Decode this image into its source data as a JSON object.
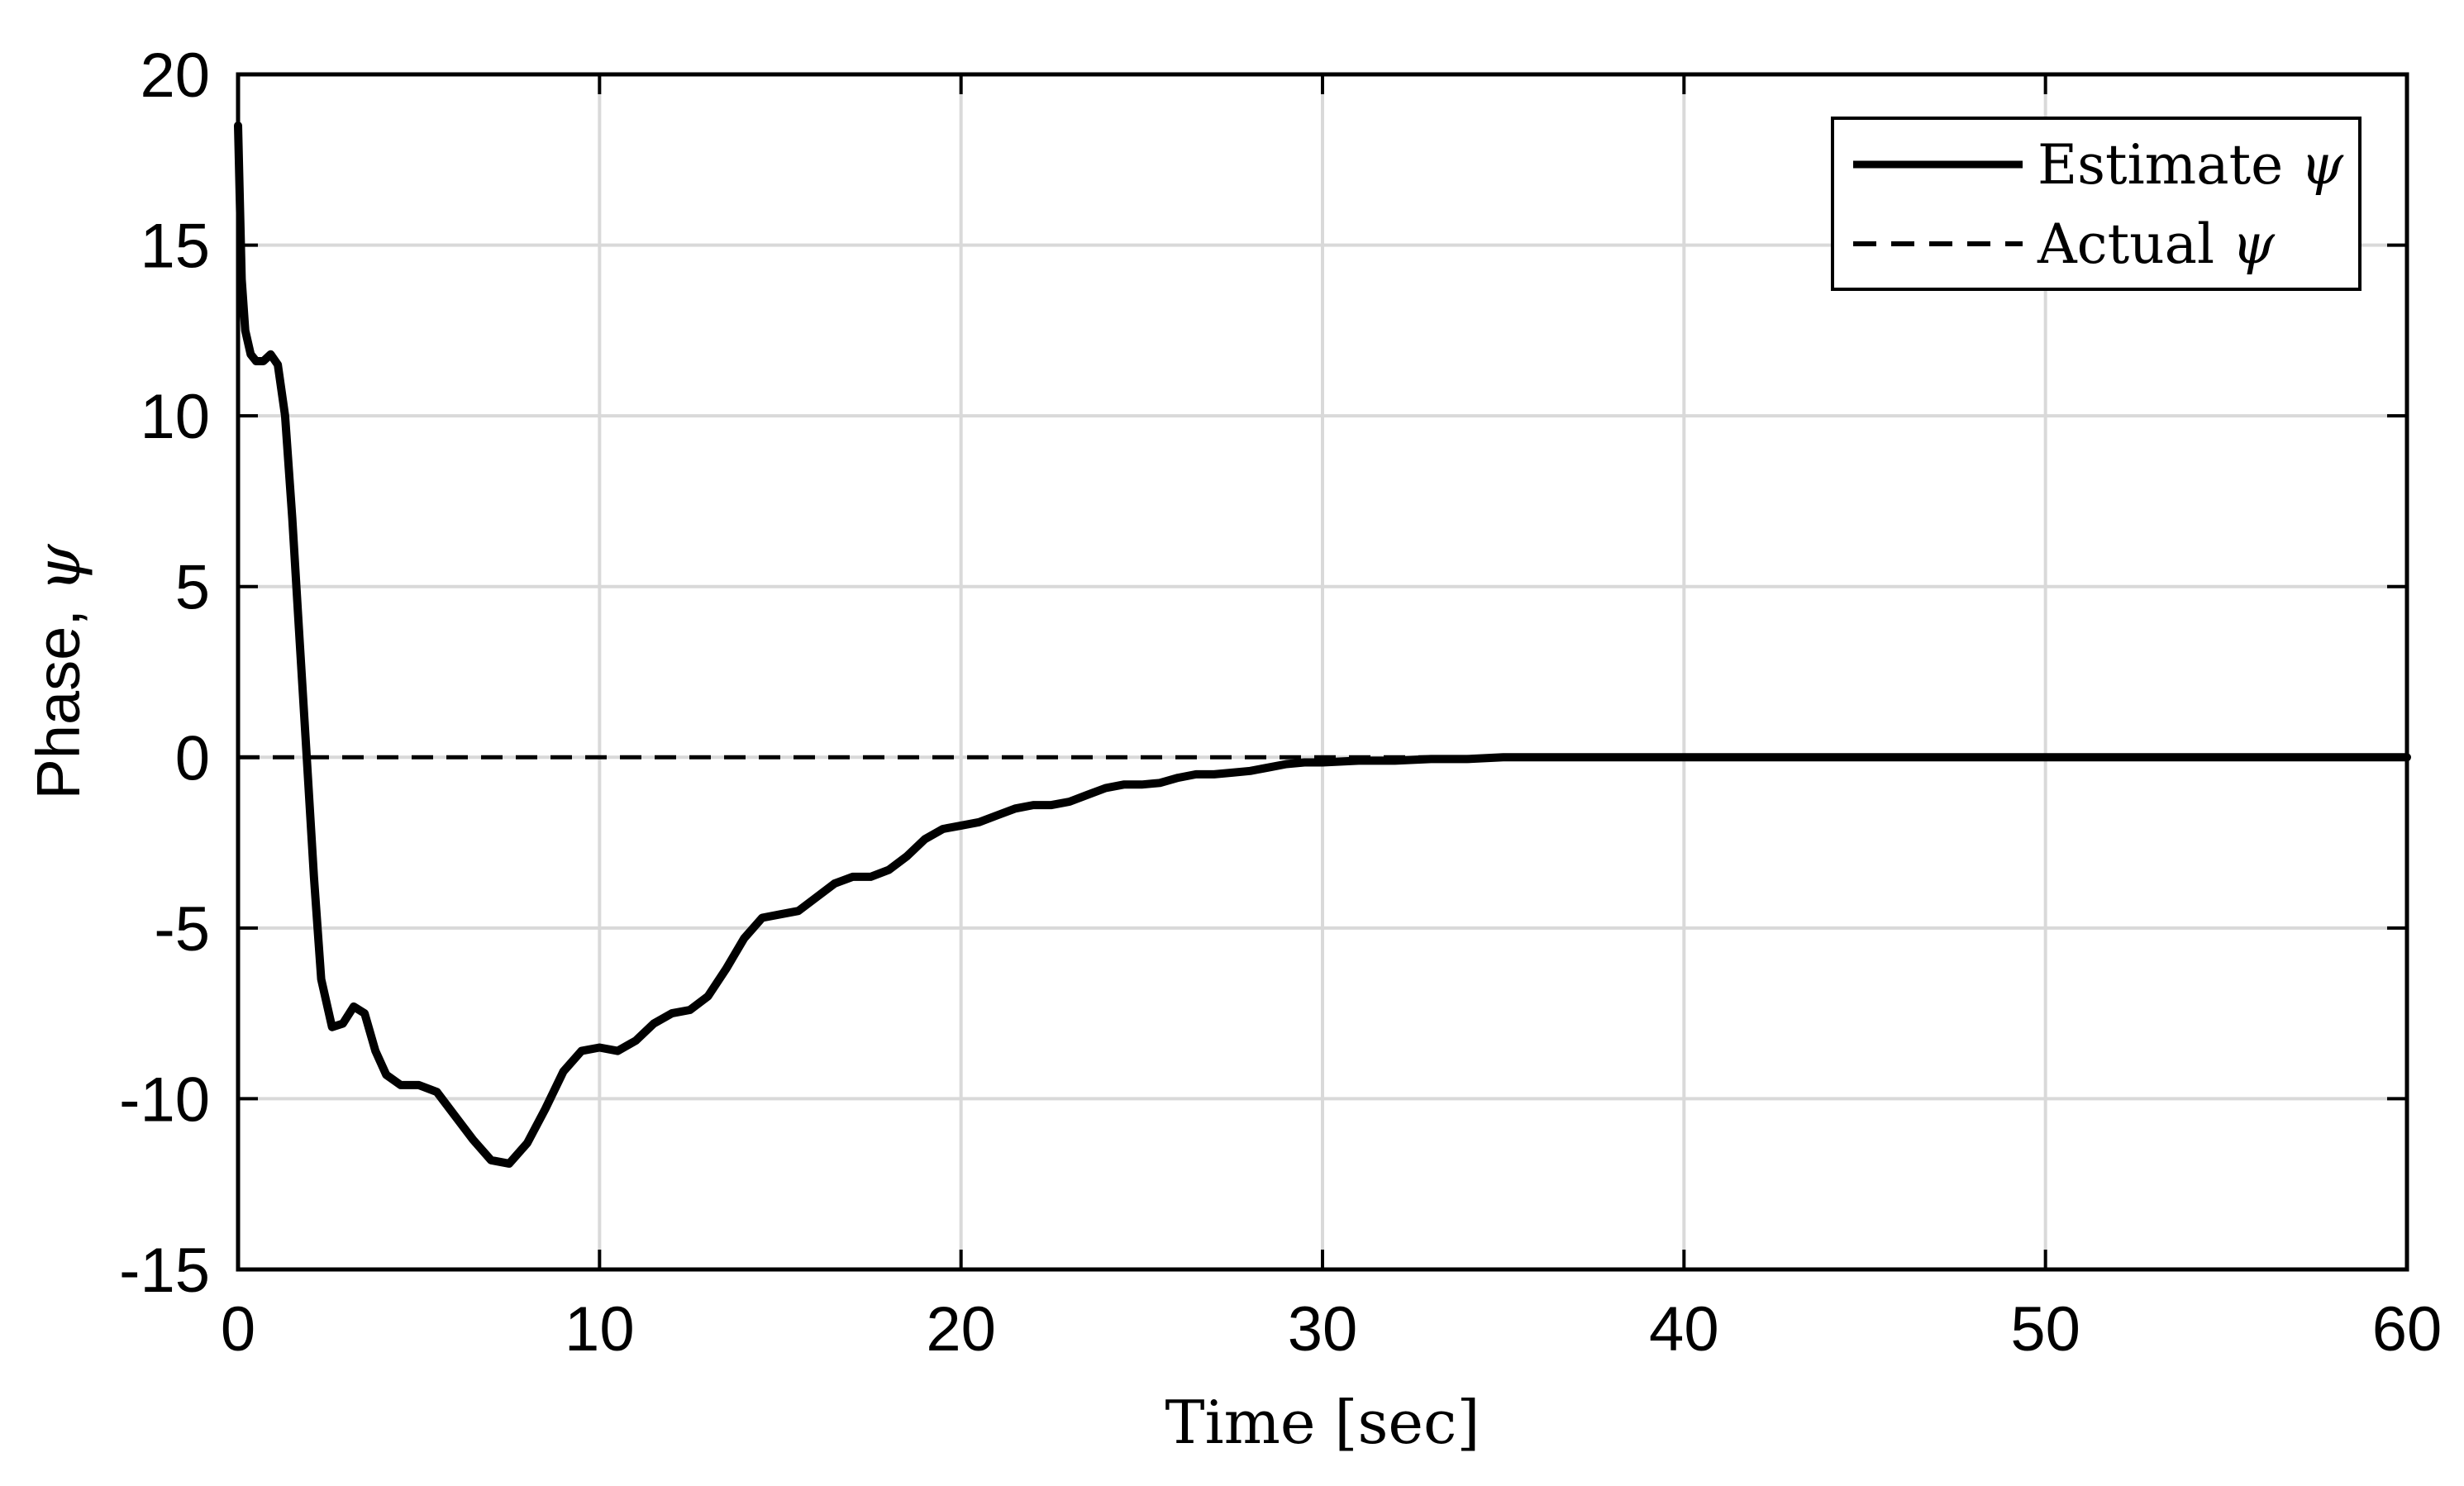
{
  "chart_data": {
    "type": "line",
    "xlabel": "Time [sec]",
    "ylabel_text": "Phase, ",
    "ylabel_symbol": "ψ",
    "xlim": [
      0,
      60
    ],
    "ylim": [
      -15,
      20
    ],
    "xticks": [
      0,
      10,
      20,
      30,
      40,
      50,
      60
    ],
    "yticks": [
      -15,
      -10,
      -5,
      0,
      5,
      10,
      15,
      20
    ],
    "grid": true,
    "legend_placement": "top-right",
    "series": [
      {
        "name": "Estimate ψ",
        "style": "solid",
        "color": "#000000",
        "x": [
          0,
          0.1,
          0.2,
          0.35,
          0.5,
          0.7,
          0.9,
          1.1,
          1.3,
          1.5,
          1.7,
          1.9,
          2.1,
          2.3,
          2.6,
          2.9,
          3.2,
          3.5,
          3.8,
          4.1,
          4.5,
          5.0,
          5.5,
          6.0,
          6.5,
          7.0,
          7.5,
          8.0,
          8.5,
          9.0,
          9.5,
          10.0,
          10.5,
          11.0,
          11.5,
          12.0,
          12.5,
          13.0,
          13.5,
          14.0,
          14.5,
          15.0,
          15.5,
          16.0,
          16.5,
          17.0,
          17.5,
          18.0,
          18.5,
          19.0,
          19.5,
          20.0,
          20.5,
          21.0,
          21.5,
          22.0,
          22.5,
          23.0,
          23.5,
          24.0,
          24.5,
          25.0,
          25.5,
          26.0,
          26.5,
          27.0,
          27.5,
          28.0,
          28.5,
          29.0,
          29.5,
          30.0,
          31.0,
          32.0,
          33.0,
          34.0,
          35.0,
          36.0,
          38.0,
          40.0,
          42.0,
          44.0,
          46.0,
          48.0,
          50.0,
          52.0,
          54.0,
          56.0,
          58.0,
          60.0
        ],
        "y": [
          18.5,
          14.0,
          12.5,
          11.8,
          11.6,
          11.6,
          11.8,
          11.5,
          10.0,
          7.0,
          3.5,
          0.0,
          -3.5,
          -6.5,
          -7.9,
          -7.8,
          -7.3,
          -7.5,
          -8.6,
          -9.3,
          -9.6,
          -9.6,
          -9.8,
          -10.5,
          -11.2,
          -11.8,
          -11.9,
          -11.3,
          -10.3,
          -9.2,
          -8.6,
          -8.5,
          -8.6,
          -8.3,
          -7.8,
          -7.5,
          -7.4,
          -7.0,
          -6.2,
          -5.3,
          -4.7,
          -4.6,
          -4.5,
          -4.1,
          -3.7,
          -3.5,
          -3.5,
          -3.3,
          -2.9,
          -2.4,
          -2.1,
          -2.0,
          -1.9,
          -1.7,
          -1.5,
          -1.4,
          -1.4,
          -1.3,
          -1.1,
          -0.9,
          -0.8,
          -0.8,
          -0.75,
          -0.6,
          -0.5,
          -0.5,
          -0.45,
          -0.4,
          -0.3,
          -0.2,
          -0.15,
          -0.15,
          -0.1,
          -0.1,
          -0.05,
          -0.05,
          0.0,
          0.0,
          0.0,
          0.0,
          0.0,
          0.0,
          0.0,
          0.0,
          0.0,
          0.0,
          0.0,
          0.0,
          0.0,
          0.0
        ]
      },
      {
        "name": "Actual ψ",
        "style": "dashed",
        "color": "#000000",
        "x": [
          0,
          60
        ],
        "y": [
          0,
          0
        ]
      }
    ]
  },
  "legend": {
    "items": [
      {
        "label": "Estimate ",
        "symbol": "ψ",
        "style": "solid"
      },
      {
        "label": "Actual ",
        "symbol": "ψ",
        "style": "dashed"
      }
    ]
  }
}
